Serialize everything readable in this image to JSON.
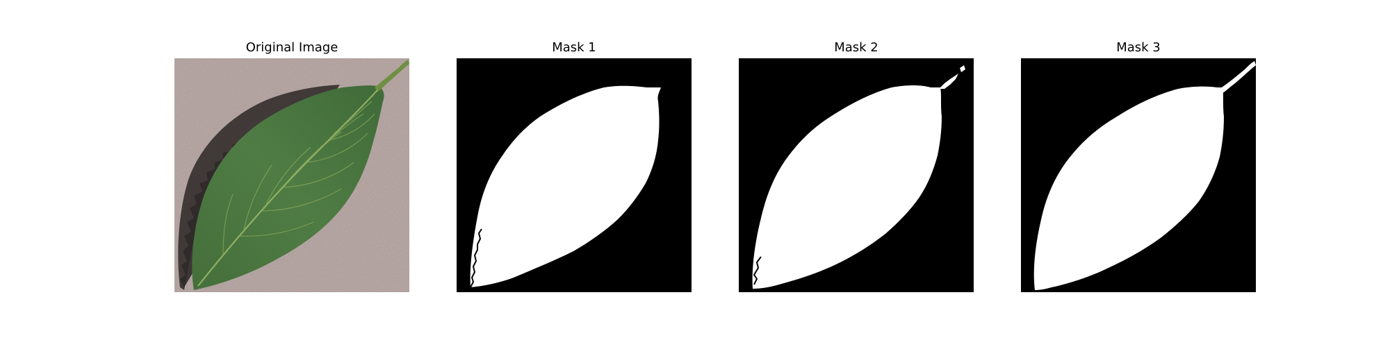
{
  "figure": {
    "panels": [
      {
        "title": "Original Image",
        "kind": "photo"
      },
      {
        "title": "Mask 1",
        "kind": "mask"
      },
      {
        "title": "Mask 2",
        "kind": "mask"
      },
      {
        "title": "Mask 3",
        "kind": "mask"
      }
    ]
  },
  "colors": {
    "background": "#c4b2ae",
    "leaf_dark": "#2e5a2a",
    "leaf_mid": "#4b7d3f",
    "leaf_vein": "#9dba6a",
    "shadow": "#3a3433",
    "mask_bg": "#000000",
    "mask_fg": "#ffffff"
  }
}
